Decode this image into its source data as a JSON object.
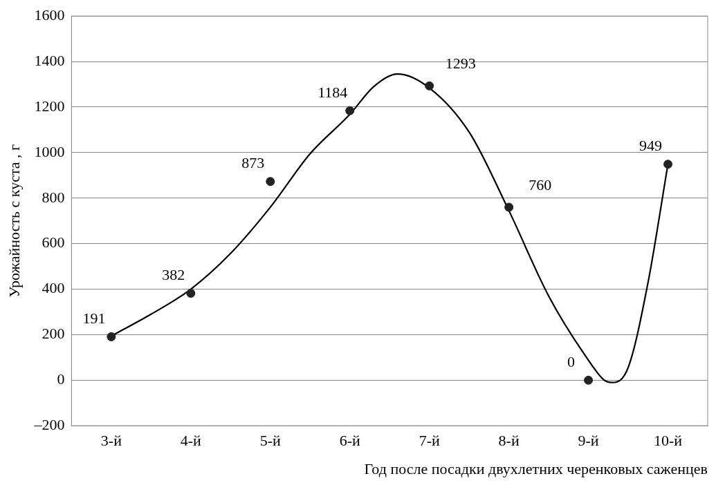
{
  "chart_data": {
    "type": "scatter",
    "xlabel": "Год после посадки двухлетних черенковых саженцев",
    "ylabel": "Урожайность с куста , г",
    "xlim": [
      2.5,
      10.5
    ],
    "xticks": [
      {
        "value": 3,
        "label": "3-й"
      },
      {
        "value": 4,
        "label": "4-й"
      },
      {
        "value": 5,
        "label": "5-й"
      },
      {
        "value": 6,
        "label": "6-й"
      },
      {
        "value": 7,
        "label": "7-й"
      },
      {
        "value": 8,
        "label": "8-й"
      },
      {
        "value": 9,
        "label": "9-й"
      },
      {
        "value": 10,
        "label": "10-й"
      }
    ],
    "ylim": [
      -200,
      1600
    ],
    "yticks": [
      {
        "value": -200,
        "label": "–200"
      },
      0,
      200,
      400,
      600,
      800,
      1000,
      1200,
      1400,
      1600
    ],
    "grid": "y",
    "legend": false,
    "series": [
      {
        "type": "line",
        "color": "#000000",
        "marker": "none",
        "x": [
          3,
          3.5,
          4,
          4.5,
          5,
          5.5,
          6,
          6.3,
          6.6,
          7,
          7.5,
          8,
          8.5,
          9,
          9.2,
          9.3,
          9.5,
          9.75,
          10
        ],
        "values": [
          194,
          290,
          400,
          557,
          760,
          995,
          1168,
          1290,
          1345,
          1284,
          1090,
          745,
          370,
          88,
          0,
          -10,
          56,
          430,
          949
        ]
      },
      {
        "type": "scatter",
        "color": "#222222",
        "marker": "circle",
        "data_labels": true,
        "x": [
          3,
          4,
          5,
          6,
          7,
          8,
          9,
          10
        ],
        "values": [
          191,
          382,
          873,
          1184,
          1293,
          760,
          0,
          949
        ]
      }
    ]
  }
}
